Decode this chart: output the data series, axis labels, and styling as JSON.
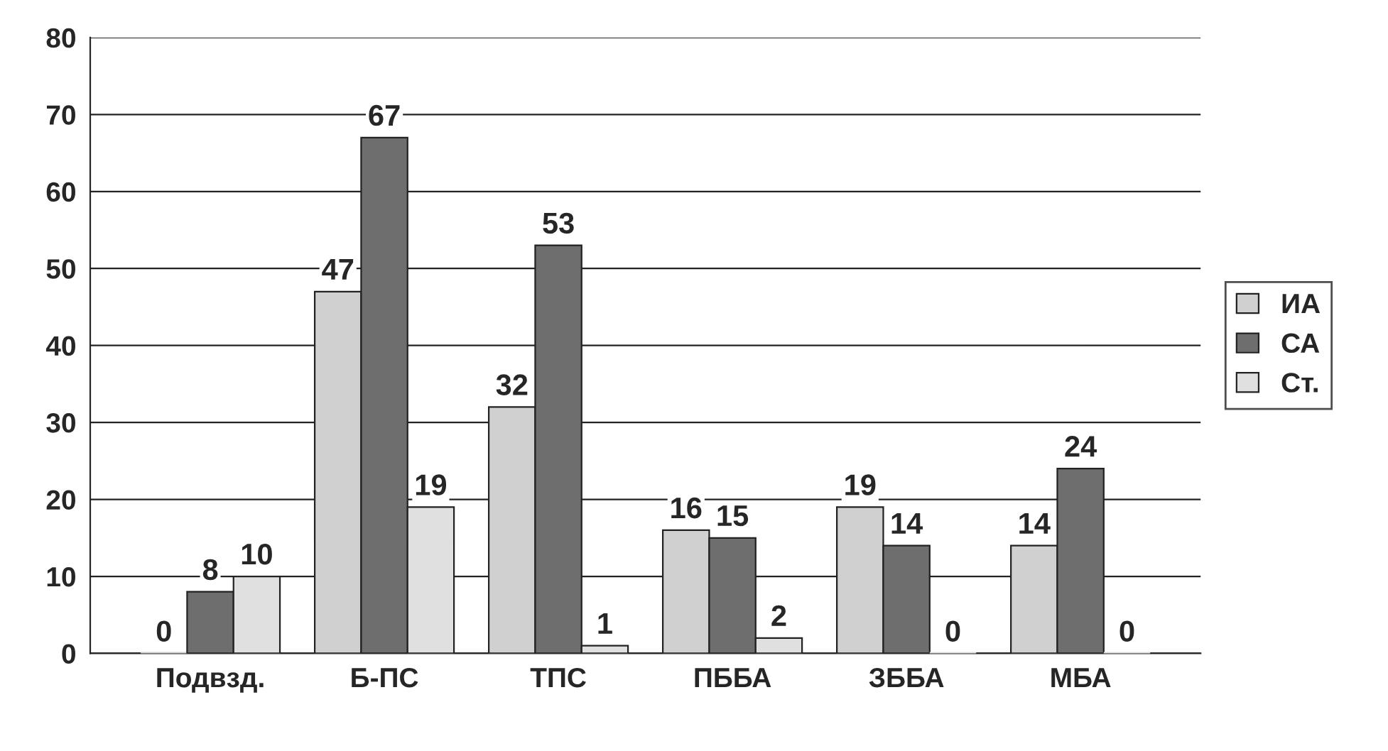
{
  "chart_data": {
    "type": "bar",
    "categories": [
      "Подвзд.",
      "Б-ПС",
      "ТПС",
      "ПББА",
      "ЗББА",
      "МБА"
    ],
    "series": [
      {
        "name": "ИА",
        "color": "#d0d0d0",
        "values": [
          0,
          47,
          32,
          16,
          19,
          14
        ]
      },
      {
        "name": "СА",
        "color": "#6e6e6e",
        "values": [
          8,
          67,
          53,
          15,
          14,
          24
        ]
      },
      {
        "name": "Ст.",
        "color": "#e0e0e0",
        "values": [
          10,
          19,
          1,
          2,
          0,
          0
        ]
      }
    ],
    "ylim": [
      0,
      80
    ],
    "yticks": [
      0,
      10,
      20,
      30,
      40,
      50,
      60,
      70,
      80
    ],
    "grid": "y",
    "legend": "right",
    "data_labels": true
  }
}
